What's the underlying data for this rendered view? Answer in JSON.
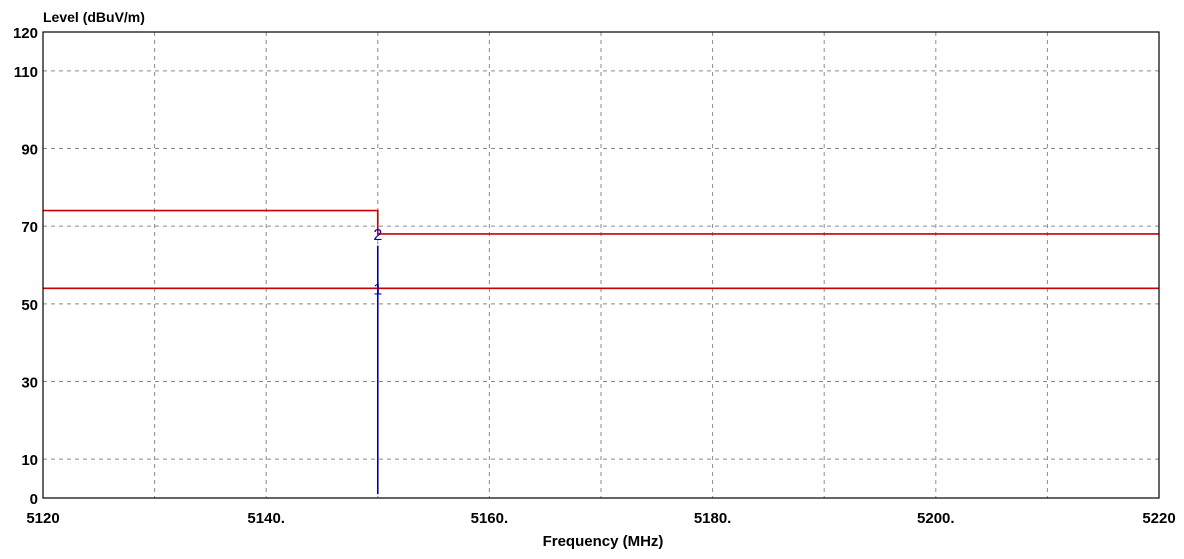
{
  "chart_data": {
    "type": "line",
    "xlabel": "Frequency (MHz)",
    "ylabel": "Level (dBuV/m)",
    "xlim": [
      5120,
      5220
    ],
    "ylim": [
      0,
      120
    ],
    "x_ticks": [
      {
        "value": 5120,
        "label": "5120"
      },
      {
        "value": 5140,
        "label": "5140."
      },
      {
        "value": 5160,
        "label": "5160."
      },
      {
        "value": 5180,
        "label": "5180."
      },
      {
        "value": 5200,
        "label": "5200."
      },
      {
        "value": 5220,
        "label": "5220"
      }
    ],
    "x_grid": [
      5130,
      5140,
      5150,
      5160,
      5170,
      5180,
      5190,
      5200,
      5210
    ],
    "y_ticks": [
      {
        "value": 0,
        "label": "0"
      },
      {
        "value": 10,
        "label": "10"
      },
      {
        "value": 30,
        "label": "30"
      },
      {
        "value": 50,
        "label": "50"
      },
      {
        "value": 70,
        "label": "70"
      },
      {
        "value": 90,
        "label": "90"
      },
      {
        "value": 110,
        "label": "110"
      },
      {
        "value": 120,
        "label": "120"
      }
    ],
    "y_grid": [
      10,
      30,
      50,
      70,
      90,
      110
    ],
    "grid": true,
    "series": [
      {
        "color": "#cc0000",
        "points": [
          [
            5120,
            74
          ],
          [
            5150,
            74
          ],
          [
            5150,
            68
          ],
          [
            5220,
            68
          ]
        ]
      },
      {
        "color": "#cc0000",
        "points": [
          [
            5120,
            54
          ],
          [
            5220,
            54
          ]
        ]
      },
      {
        "color": "#0000cc",
        "points": [
          [
            5150,
            1
          ],
          [
            5150,
            65
          ]
        ]
      }
    ],
    "markers": [
      {
        "label": "1",
        "x": 5150,
        "y": 54,
        "color": "#0000cc"
      },
      {
        "label": "2",
        "x": 5150,
        "y": 68,
        "color": "#0000cc"
      }
    ]
  }
}
